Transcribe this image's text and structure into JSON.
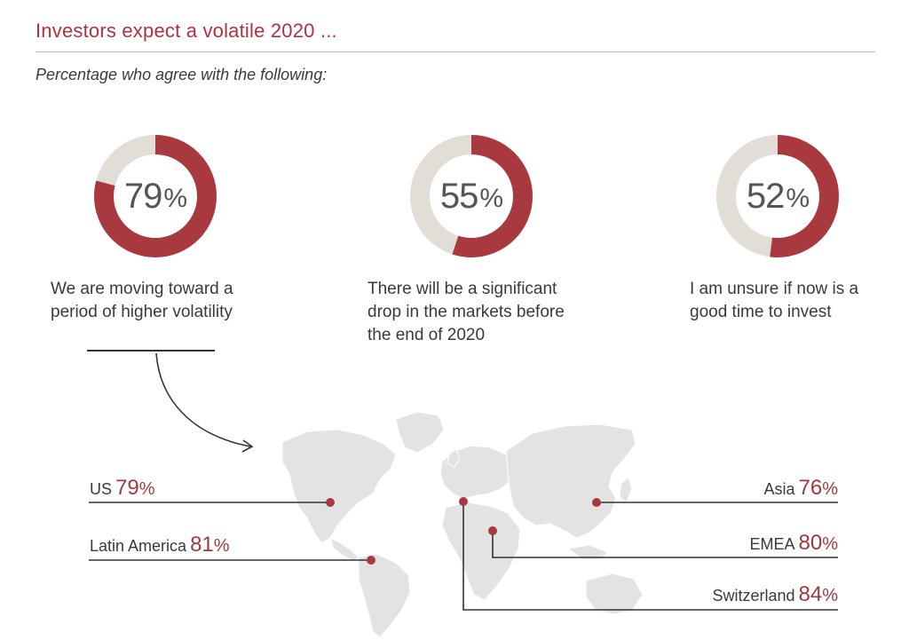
{
  "header": {
    "title": "Investors expect a volatile 2020 ...",
    "subtitle": "Percentage who agree with the following:"
  },
  "colors": {
    "accent": "#b0313f",
    "donut_fill": "#a83a3f",
    "donut_track": "#e2ddd6",
    "map_fill": "#e3e3e3",
    "marker": "#a83a3f"
  },
  "chart_data": [
    {
      "type": "pie",
      "title": "",
      "items": [
        {
          "value": 79,
          "display_number": "79",
          "display_unit": "%",
          "statement": [
            "We are moving toward a",
            "period of higher volatility"
          ]
        },
        {
          "value": 55,
          "display_number": "55",
          "display_unit": "%",
          "statement": [
            "There will be a significant",
            "drop in the markets before",
            "the end of 2020"
          ]
        },
        {
          "value": 52,
          "display_number": "52",
          "display_unit": "%",
          "statement": [
            "I am unsure if now is a",
            "good time to invest"
          ]
        }
      ]
    },
    {
      "type": "table",
      "title": "",
      "regions": [
        {
          "name": "US",
          "number": "79",
          "unit": "%",
          "value": 79
        },
        {
          "name": "Latin America",
          "number": "81",
          "unit": "%",
          "value": 81
        },
        {
          "name": "Asia",
          "number": "76",
          "unit": "%",
          "value": 76
        },
        {
          "name": "EMEA",
          "number": "80",
          "unit": "%",
          "value": 80
        },
        {
          "name": "Switzerland",
          "number": "84",
          "unit": "%",
          "value": 84
        }
      ]
    }
  ]
}
